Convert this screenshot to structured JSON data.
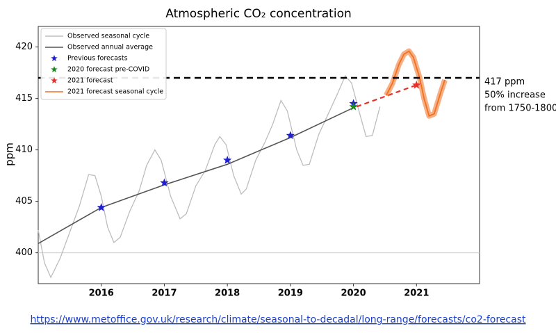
{
  "chart_data": {
    "type": "line",
    "title": "Atmospheric CO₂ concentration",
    "y_label": "ppm",
    "xlim": [
      2015,
      2022
    ],
    "ylim": [
      397,
      422
    ],
    "xticks": [
      2016,
      2017,
      2018,
      2019,
      2020,
      2021
    ],
    "yticks": [
      400,
      405,
      410,
      415,
      420
    ],
    "reference_line": 400,
    "threshold_line": {
      "value": 417,
      "color": "#000000"
    },
    "annotations": [
      "417 ppm",
      "50% increase",
      "from 1750-1800"
    ],
    "legend": "upper left",
    "series": [
      {
        "name": "Observed seasonal cycle",
        "style": "line",
        "color": "#bdbdbd",
        "x": [
          2015.0,
          2015.1,
          2015.2,
          2015.35,
          2015.5,
          2015.65,
          2015.8,
          2015.9,
          2016.0,
          2016.1,
          2016.2,
          2016.3,
          2016.45,
          2016.6,
          2016.72,
          2016.85,
          2016.95,
          2017.1,
          2017.25,
          2017.35,
          2017.5,
          2017.65,
          2017.8,
          2017.88,
          2017.98,
          2018.1,
          2018.22,
          2018.3,
          2018.45,
          2018.6,
          2018.72,
          2018.85,
          2018.95,
          2019.1,
          2019.2,
          2019.3,
          2019.45,
          2019.6,
          2019.75,
          2019.87,
          2019.97,
          2020.1,
          2020.2,
          2020.3,
          2020.42
        ],
        "values": [
          402.2,
          399.0,
          397.6,
          399.5,
          402.0,
          404.5,
          407.6,
          407.5,
          405.5,
          402.5,
          401.0,
          401.5,
          404.0,
          406.0,
          408.5,
          410.0,
          409.0,
          405.5,
          403.3,
          403.8,
          406.5,
          408.0,
          410.5,
          411.3,
          410.5,
          407.5,
          405.7,
          406.2,
          409.0,
          410.8,
          412.5,
          414.8,
          413.8,
          410.0,
          408.5,
          408.6,
          411.5,
          413.5,
          415.5,
          417.2,
          416.5,
          413.5,
          411.3,
          411.4,
          414.2
        ]
      },
      {
        "name": "Observed annual average",
        "style": "line",
        "color": "#555555",
        "x": [
          2015.0,
          2016,
          2017,
          2018,
          2019,
          2020
        ],
        "values": [
          400.9,
          404.4,
          406.6,
          408.6,
          411.2,
          414.1
        ]
      },
      {
        "name": "Previous forecasts",
        "style": "star",
        "color": "#1f1fd0",
        "x": [
          2016,
          2017,
          2018,
          2019,
          2020
        ],
        "values": [
          404.4,
          406.8,
          409.0,
          411.4,
          414.5
        ]
      },
      {
        "name": "2020 forecast pre-COVID",
        "style": "star",
        "color": "#1e8a1e",
        "x": [
          2020
        ],
        "values": [
          414.2
        ]
      },
      {
        "style": "dashed",
        "color": "#e8302a",
        "x": [
          2020.05,
          2021
        ],
        "values": [
          414.2,
          416.3
        ]
      },
      {
        "name": "2021 forecast",
        "style": "star",
        "color": "#e8302a",
        "x": [
          2021
        ],
        "values": [
          416.3
        ]
      },
      {
        "name": "2021 forecast seasonal cycle",
        "style": "band-line",
        "color": "#f07020",
        "x": [
          2020.52,
          2020.62,
          2020.72,
          2020.8,
          2020.88,
          2020.95,
          2021.05,
          2021.12,
          2021.2,
          2021.28,
          2021.38,
          2021.45
        ],
        "values": [
          415.3,
          416.5,
          418.3,
          419.3,
          419.6,
          419.0,
          417.0,
          415.0,
          413.3,
          413.5,
          415.5,
          416.8
        ]
      }
    ],
    "source_link": "https://www.metoffice.gov.uk/research/climate/seasonal-to-decadal/long-range/forecasts/co2-forecast"
  }
}
